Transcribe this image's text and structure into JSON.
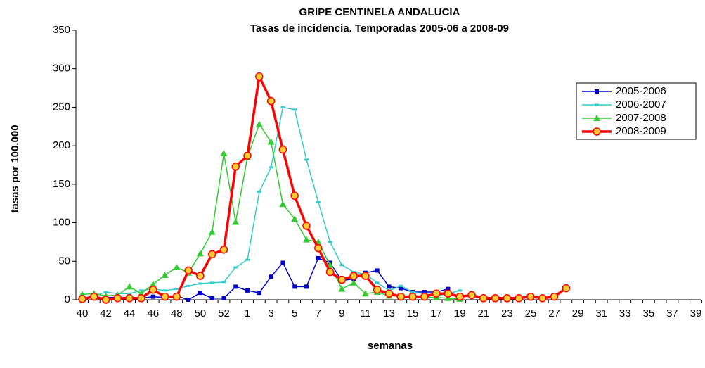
{
  "chart_data": {
    "type": "line",
    "title": "GRIPE CENTINELA ANDALUCIA",
    "subtitle": "Tasas de incidencia. Temporadas 2005-06 a 2008-09",
    "x_label": "semanas",
    "y_label": "tasas por 100.000",
    "categories": [
      "40",
      null,
      "42",
      null,
      "44",
      null,
      "46",
      null,
      "48",
      null,
      "50",
      null,
      "52",
      null,
      "1",
      null,
      "3",
      null,
      "5",
      null,
      "7",
      null,
      "9",
      null,
      "11",
      null,
      "13",
      null,
      "15",
      null,
      "17",
      null,
      "19",
      null,
      "21",
      null,
      "23",
      null,
      "25",
      null,
      "27",
      null,
      "29",
      null,
      "31",
      null,
      "33",
      null,
      "35",
      null,
      "37",
      null,
      "39"
    ],
    "ylim": [
      0,
      350
    ],
    "yticks": [
      0,
      50,
      100,
      150,
      200,
      250,
      300,
      350
    ],
    "legend": "upper right",
    "series": [
      {
        "name": "2005-2006",
        "color": "#0000cc",
        "marker": "square",
        "values": [
          2,
          2,
          3,
          3,
          2,
          2,
          4,
          3,
          5,
          0,
          9,
          2,
          2,
          17,
          12,
          9,
          30,
          48,
          17,
          17,
          54,
          48,
          25,
          27,
          35,
          38,
          17,
          15,
          10,
          10,
          10,
          14,
          null,
          null,
          null,
          null,
          null,
          null,
          null,
          null,
          null,
          null,
          null,
          null,
          null,
          null,
          null,
          null,
          null,
          null,
          null,
          null,
          null
        ]
      },
      {
        "name": "2006-2007",
        "color": "#33cccc",
        "marker": "dash",
        "values": [
          5,
          5,
          10,
          8,
          8,
          12,
          14,
          12,
          14,
          18,
          21,
          22,
          23,
          42,
          52,
          140,
          172,
          250,
          247,
          182,
          127,
          75,
          45,
          36,
          33,
          22,
          12,
          18,
          10,
          8,
          5,
          8,
          12,
          null,
          null,
          null,
          null,
          null,
          null,
          null,
          null,
          null,
          null,
          null,
          null,
          null,
          null,
          null,
          null,
          null,
          null,
          null,
          null
        ]
      },
      {
        "name": "2007-2008",
        "color": "#33cc33",
        "marker": "triangle",
        "values": [
          7,
          8,
          5,
          6,
          17,
          8,
          20,
          32,
          42,
          35,
          60,
          88,
          190,
          101,
          185,
          228,
          205,
          124,
          105,
          78,
          75,
          45,
          14,
          22,
          8,
          10,
          5,
          5,
          4,
          3,
          3,
          2,
          1,
          null,
          null,
          null,
          null,
          null,
          null,
          null,
          null,
          null,
          null,
          null,
          null,
          null,
          null,
          null,
          null,
          null,
          null,
          null,
          null
        ]
      },
      {
        "name": "2008-2009",
        "color": "#ff0000",
        "marker": "circle",
        "values": [
          1,
          4,
          0,
          2,
          2,
          2,
          13,
          4,
          4,
          38,
          31,
          59,
          65,
          173,
          187,
          290,
          258,
          195,
          135,
          96,
          67,
          36,
          26,
          31,
          31,
          13,
          8,
          4,
          4,
          4,
          8,
          8,
          4,
          6,
          2,
          2,
          2,
          2,
          4,
          2,
          4,
          15,
          null,
          null,
          null,
          null,
          null,
          null,
          null,
          null,
          null,
          null,
          null
        ]
      }
    ]
  }
}
